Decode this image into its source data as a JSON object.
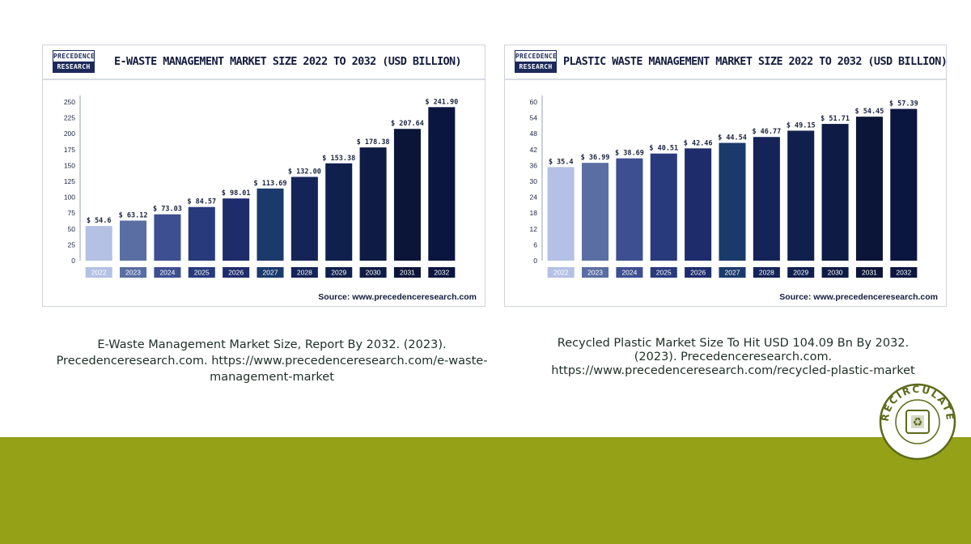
{
  "colors": {
    "footer": "#95a117",
    "bar_gradient": [
      "#b4c1e4",
      "#5a6ea3",
      "#3d4f91",
      "#283a7c",
      "#1e2c6c",
      "#1a3a6b",
      "#142458",
      "#10204e",
      "#0e1b44",
      "#0b1538",
      "#0a1540"
    ]
  },
  "charts": [
    {
      "logo_line1": "PRECEDENCE",
      "logo_line2": "RESEARCH",
      "source": "Source: www.precedenceresearch.com"
    },
    {
      "logo_line1": "PRECEDENCE",
      "logo_line2": "RESEARCH",
      "source": "Source: www.precedenceresearch.com"
    }
  ],
  "chart_data": [
    {
      "type": "bar",
      "title": "E-WASTE MANAGEMENT MARKET SIZE 2022 TO 2032 (USD BILLION)",
      "categories": [
        "2022",
        "2023",
        "2024",
        "2025",
        "2026",
        "2027",
        "2028",
        "2029",
        "2030",
        "2031",
        "2032"
      ],
      "values": [
        54.6,
        63.12,
        73.03,
        84.57,
        98.01,
        113.69,
        132.0,
        153.38,
        178.38,
        207.64,
        241.9
      ],
      "value_labels": [
        "$ 54.6",
        "$ 63.12",
        "$ 73.03",
        "$ 84.57",
        "$ 98.01",
        "$ 113.69",
        "$ 132.00",
        "$ 153.38",
        "$ 178.38",
        "$ 207.64",
        "$ 241.90"
      ],
      "yticks": [
        0,
        25,
        50,
        75,
        100,
        125,
        150,
        175,
        200,
        225,
        250
      ],
      "ylim": [
        0,
        250
      ],
      "grid": false,
      "legend": "none"
    },
    {
      "type": "bar",
      "title": "PLASTIC WASTE MANAGEMENT MARKET SIZE 2022 TO 2032 (USD BILLION)",
      "categories": [
        "2022",
        "2023",
        "2024",
        "2025",
        "2026",
        "2027",
        "2028",
        "2029",
        "2030",
        "2031",
        "2032"
      ],
      "values": [
        35.4,
        36.99,
        38.69,
        40.51,
        42.46,
        44.54,
        46.77,
        49.15,
        51.71,
        54.45,
        57.39
      ],
      "value_labels": [
        "$ 35.4",
        "$ 36.99",
        "$ 38.69",
        "$ 40.51",
        "$ 42.46",
        "$ 44.54",
        "$ 46.77",
        "$ 49.15",
        "$ 51.71",
        "$ 54.45",
        "$ 57.39"
      ],
      "yticks": [
        0,
        6,
        12,
        18,
        24,
        30,
        36,
        42,
        48,
        54,
        60
      ],
      "ylim": [
        0,
        60
      ],
      "grid": false,
      "legend": "none"
    }
  ],
  "citations": {
    "left": "E-Waste Management Market Size, Report By 2032. (2023). Precedenceresearch.com. https://www.precedenceresearch.com/e-waste-management-market",
    "right": "Recycled Plastic Market Size To Hit USD 104.09 Bn By 2032. (2023). Precedenceresearch.com. https://www.precedenceresearch.com/recycled-plastic-market"
  },
  "badge": {
    "text": "RECIRCULATE",
    "icon": "recycle-icon",
    "color": "#5c6a1a"
  }
}
